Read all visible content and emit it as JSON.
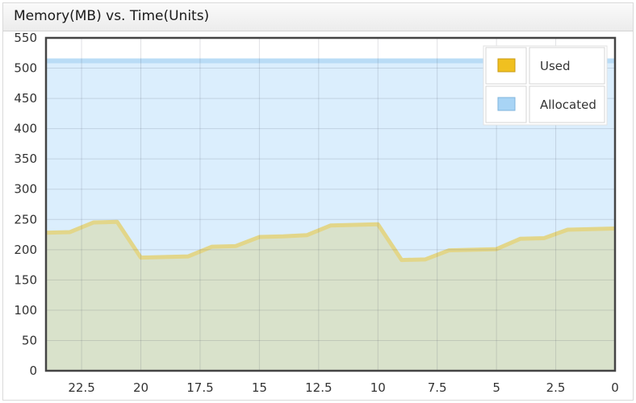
{
  "chart_data": {
    "type": "area",
    "title": "Memory(MB) vs. Time(Units)",
    "xlabel": "",
    "ylabel": "",
    "x_reversed": true,
    "xlim": [
      24,
      0
    ],
    "ylim": [
      0,
      550
    ],
    "x_ticks": [
      22.5,
      20,
      17.5,
      15,
      12.5,
      10,
      7.5,
      5,
      2.5,
      0
    ],
    "x_tick_labels": [
      "22.5",
      "20",
      "17.5",
      "15",
      "12.5",
      "10",
      "7.5",
      "5",
      "2.5",
      "0"
    ],
    "y_ticks": [
      0,
      50,
      100,
      150,
      200,
      250,
      300,
      350,
      400,
      450,
      500,
      550
    ],
    "y_tick_labels": [
      "0",
      "50",
      "100",
      "150",
      "200",
      "250",
      "300",
      "350",
      "400",
      "450",
      "500",
      "550"
    ],
    "grid": true,
    "legend_position": "top-right",
    "series": [
      {
        "name": "Used",
        "color": "#f0c020",
        "x": [
          24,
          23,
          22,
          21,
          20,
          19,
          18,
          17,
          16,
          15,
          14,
          13,
          12,
          11,
          10,
          9,
          8,
          7,
          6,
          5,
          4,
          3,
          2,
          1,
          0
        ],
        "values": [
          228,
          229,
          245,
          246,
          187,
          188,
          189,
          205,
          206,
          221,
          222,
          224,
          240,
          241,
          242,
          183,
          184,
          199,
          200,
          201,
          218,
          219,
          233,
          234,
          235
        ]
      },
      {
        "name": "Allocated",
        "color": "#a8d4f5",
        "x": [
          24,
          0
        ],
        "values": [
          512,
          512
        ]
      }
    ]
  }
}
